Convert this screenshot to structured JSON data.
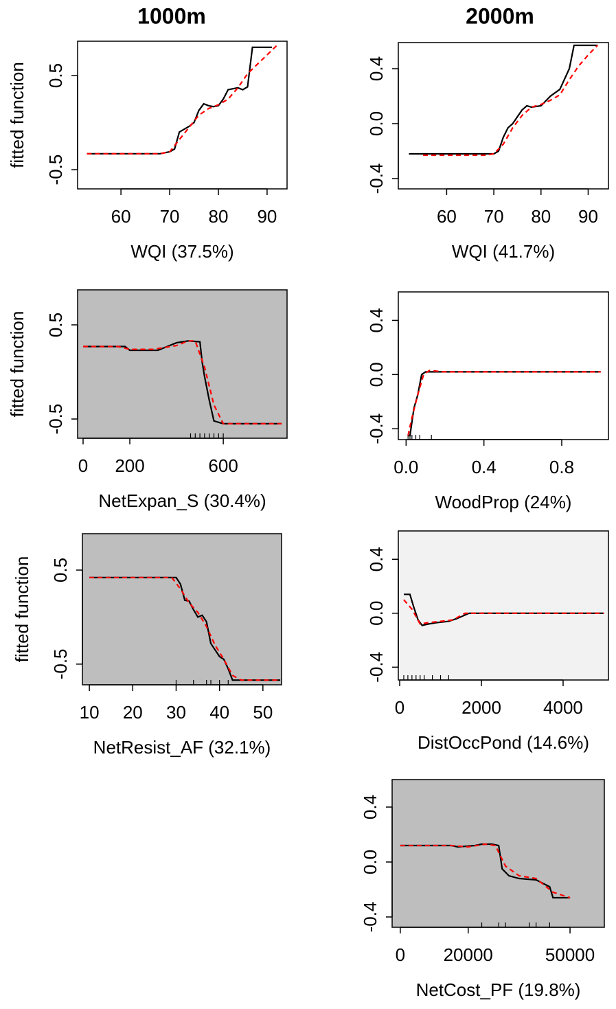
{
  "panel_titles": [
    "1000m",
    "2000m"
  ],
  "chart_data": [
    {
      "type": "line",
      "background": "#ffffff",
      "xlabel": "WQI (37.5%)",
      "ylabel": "fitted function",
      "xlim": [
        51.1,
        94.1
      ],
      "ylim": [
        -0.704,
        0.865
      ],
      "xticks": [
        60,
        70,
        80,
        90
      ],
      "yticks": [
        -0.5,
        0.5
      ],
      "series": [
        {
          "color": "#000000",
          "linestyle": "solid",
          "x": [
            53,
            68,
            70,
            71,
            72,
            73,
            74,
            75,
            76,
            77,
            78,
            79,
            80,
            81,
            82,
            84,
            85,
            86,
            87,
            88,
            91
          ],
          "values": [
            -0.33,
            -0.33,
            -0.31,
            -0.28,
            -0.1,
            -0.07,
            -0.04,
            0.0,
            0.13,
            0.2,
            0.18,
            0.17,
            0.18,
            0.25,
            0.35,
            0.37,
            0.35,
            0.38,
            0.8,
            0.8,
            0.8
          ]
        },
        {
          "color": "#ff0000",
          "linestyle": "dashed",
          "x": [
            53,
            66,
            68,
            70,
            72,
            74,
            76,
            78,
            80,
            82,
            84,
            86,
            88,
            90,
            92
          ],
          "values": [
            -0.33,
            -0.33,
            -0.33,
            -0.31,
            -0.18,
            -0.05,
            0.08,
            0.15,
            0.19,
            0.25,
            0.37,
            0.52,
            0.62,
            0.72,
            0.82
          ]
        }
      ],
      "rug": []
    },
    {
      "type": "line",
      "background": "#ffffff",
      "xlabel": "WQI (41.7%)",
      "xlim": [
        49.75,
        94.3
      ],
      "ylim": [
        -0.475,
        0.59
      ],
      "xticks": [
        60,
        70,
        80,
        90
      ],
      "yticks": [
        -0.4,
        {
          "value": 0,
          "label": "0.0"
        },
        0.4
      ],
      "series": [
        {
          "color": "#000000",
          "linestyle": "solid",
          "x": [
            52,
            70,
            71,
            72,
            73,
            74,
            75,
            76,
            77,
            78,
            80,
            82,
            84,
            86,
            87,
            88,
            92
          ],
          "values": [
            -0.22,
            -0.22,
            -0.2,
            -0.1,
            -0.03,
            0.0,
            0.05,
            0.1,
            0.13,
            0.12,
            0.13,
            0.2,
            0.25,
            0.4,
            0.57,
            0.57,
            0.57
          ]
        },
        {
          "color": "#ff0000",
          "linestyle": "dashed",
          "x": [
            55,
            68,
            70,
            72,
            74,
            76,
            78,
            80,
            82,
            84,
            86,
            88,
            90,
            92
          ],
          "values": [
            -0.23,
            -0.23,
            -0.22,
            -0.15,
            -0.03,
            0.06,
            0.12,
            0.14,
            0.17,
            0.21,
            0.32,
            0.42,
            0.5,
            0.57
          ]
        }
      ],
      "rug": []
    },
    {
      "type": "line",
      "background": "#bebebe",
      "xlabel": "NetExpan_S (30.4%)",
      "ylabel": "fitted function",
      "xlim": [
        -23.5,
        873
      ],
      "ylim": [
        -0.704,
        0.872
      ],
      "xticks": [
        0,
        200,
        600
      ],
      "yticks": [
        -0.5,
        0.5
      ],
      "series": [
        {
          "color": "#000000",
          "linestyle": "solid",
          "x": [
            0,
            180,
            200,
            320,
            400,
            450,
            500,
            510,
            520,
            540,
            560,
            600,
            850
          ],
          "values": [
            0.27,
            0.27,
            0.23,
            0.23,
            0.31,
            0.33,
            0.32,
            0.1,
            -0.05,
            -0.3,
            -0.52,
            -0.55,
            -0.55
          ]
        },
        {
          "color": "#ff0000",
          "linestyle": "dashed",
          "x": [
            0,
            150,
            200,
            300,
            400,
            450,
            480,
            520,
            560,
            600,
            650,
            850
          ],
          "values": [
            0.27,
            0.27,
            0.24,
            0.24,
            0.28,
            0.33,
            0.33,
            0.05,
            -0.35,
            -0.55,
            -0.55,
            -0.55
          ]
        }
      ],
      "rug": [
        460,
        480,
        500,
        520,
        540,
        560,
        580,
        600
      ]
    },
    {
      "type": "line",
      "background": "#ffffff",
      "xlabel": "WoodProp (24%)",
      "xlim": [
        -0.04,
        1.04
      ],
      "ylim": [
        -0.48,
        0.61
      ],
      "xticks": [
        {
          "value": 0,
          "label": "0.0"
        },
        0.4,
        0.8
      ],
      "yticks": [
        -0.4,
        {
          "value": 0,
          "label": "0.0"
        },
        0.4
      ],
      "series": [
        {
          "color": "#000000",
          "linestyle": "solid",
          "x": [
            0.01,
            0.02,
            0.04,
            0.06,
            0.08,
            0.1,
            0.2,
            1.0
          ],
          "values": [
            -0.45,
            -0.45,
            -0.25,
            -0.15,
            0.0,
            0.02,
            0.02,
            0.02
          ]
        },
        {
          "color": "#ff0000",
          "linestyle": "dashed",
          "x": [
            0.01,
            0.03,
            0.06,
            0.09,
            0.12,
            0.2,
            1.0
          ],
          "values": [
            -0.45,
            -0.32,
            -0.15,
            0.0,
            0.03,
            0.02,
            0.02
          ]
        }
      ],
      "rug": [
        0.01,
        0.02,
        0.03,
        0.05,
        0.07,
        0.13
      ]
    },
    {
      "type": "line",
      "background": "#bebebe",
      "xlabel": "NetResist_AF (32.1%)",
      "ylabel": "fitted function",
      "xlim": [
        8.4,
        54.3
      ],
      "ylim": [
        -0.72,
        0.887
      ],
      "xticks": [
        10,
        20,
        30,
        40,
        50
      ],
      "yticks": [
        -0.5,
        0.5
      ],
      "series": [
        {
          "color": "#000000",
          "linestyle": "solid",
          "x": [
            10,
            30,
            31,
            32,
            33,
            34,
            35,
            36,
            37,
            38,
            39,
            40,
            41,
            42,
            43,
            54
          ],
          "values": [
            0.42,
            0.42,
            0.35,
            0.18,
            0.17,
            0.08,
            0.0,
            0.02,
            -0.05,
            -0.28,
            -0.35,
            -0.42,
            -0.45,
            -0.55,
            -0.67,
            -0.67
          ]
        },
        {
          "color": "#ff0000",
          "linestyle": "dashed",
          "x": [
            10,
            29,
            31,
            33,
            35,
            37,
            39,
            41,
            43,
            45,
            54
          ],
          "values": [
            0.42,
            0.42,
            0.3,
            0.15,
            0.05,
            -0.1,
            -0.3,
            -0.45,
            -0.62,
            -0.67,
            -0.67
          ]
        }
      ],
      "rug": [
        30,
        34,
        37,
        38,
        40,
        42
      ]
    },
    {
      "type": "line",
      "background": "#f2f2f2",
      "xlabel": "DistOccPond (14.6%)",
      "xlim": [
        -34,
        5110
      ],
      "ylim": [
        -0.495,
        0.61
      ],
      "xticks": [
        0,
        2000,
        4000
      ],
      "yticks": [
        -0.4,
        {
          "value": 0,
          "label": "0.0"
        },
        0.4
      ],
      "series": [
        {
          "color": "#000000",
          "linestyle": "solid",
          "x": [
            100,
            250,
            350,
            450,
            550,
            700,
            900,
            1200,
            1400,
            1700,
            5000
          ],
          "values": [
            0.14,
            0.14,
            0.04,
            -0.05,
            -0.09,
            -0.08,
            -0.07,
            -0.06,
            -0.04,
            0.0,
            0.0
          ]
        },
        {
          "color": "#ff0000",
          "linestyle": "dashed",
          "x": [
            100,
            300,
            500,
            700,
            1000,
            1300,
            1600,
            5000
          ],
          "values": [
            0.1,
            0.03,
            -0.08,
            -0.07,
            -0.06,
            -0.05,
            0.0,
            0.0
          ]
        }
      ],
      "rug": [
        100,
        200,
        300,
        400,
        500,
        600,
        800,
        1000,
        1200
      ]
    },
    {
      "type": "line",
      "background": "#bebebe",
      "xlabel": "NetCost_PF (19.8%)",
      "xlim": [
        -2400,
        60100
      ],
      "ylim": [
        -0.475,
        0.6
      ],
      "xticks": [
        0,
        20000,
        50000
      ],
      "yticks": [
        -0.4,
        {
          "value": 0,
          "label": "0.0"
        },
        0.4
      ],
      "series": [
        {
          "color": "#000000",
          "linestyle": "solid",
          "x": [
            0,
            15000,
            17000,
            22000,
            24000,
            27000,
            29000,
            30000,
            32000,
            35000,
            40000,
            44000,
            45000,
            50000
          ],
          "values": [
            0.12,
            0.12,
            0.11,
            0.12,
            0.13,
            0.13,
            0.12,
            -0.05,
            -0.1,
            -0.12,
            -0.13,
            -0.18,
            -0.26,
            -0.26
          ]
        },
        {
          "color": "#ff0000",
          "linestyle": "dashed",
          "x": [
            0,
            15000,
            20000,
            25000,
            28000,
            31000,
            35000,
            40000,
            45000,
            50000
          ],
          "values": [
            0.12,
            0.12,
            0.11,
            0.13,
            0.12,
            -0.03,
            -0.1,
            -0.12,
            -0.22,
            -0.26
          ]
        }
      ],
      "rug": [
        24000,
        29000,
        31000,
        38000,
        40000,
        44000
      ]
    }
  ]
}
